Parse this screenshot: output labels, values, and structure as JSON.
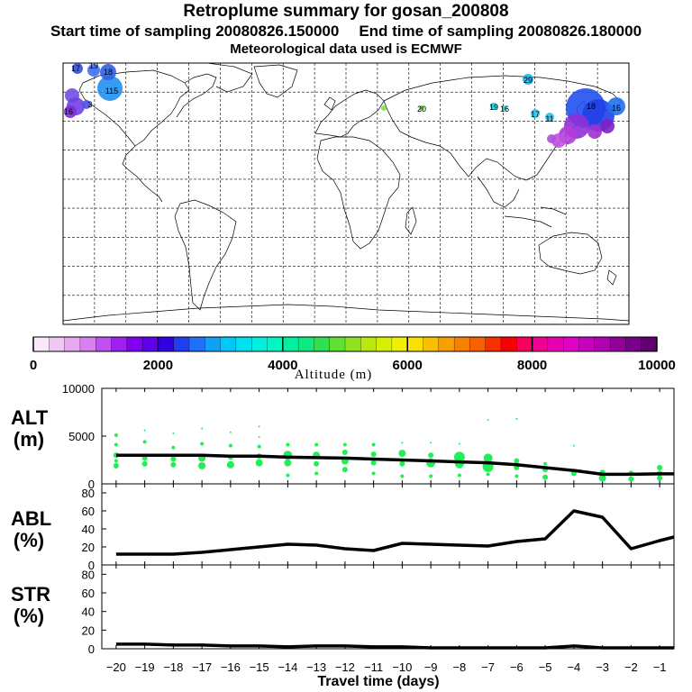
{
  "header": {
    "title": "Retroplume summary for gosan_200808",
    "start_label": "Start time of sampling 20080826.150000",
    "end_label": "End time of sampling 20080826.180000",
    "met_label": "Meteorological data used is ECMWF"
  },
  "colorbar": {
    "xlabel": "Altitude (m)",
    "ticks": [
      "0",
      "2000",
      "4000",
      "6000",
      "8000",
      "10000"
    ],
    "range": [
      0,
      10000
    ],
    "colors": [
      "#f8e8f8",
      "#f0c8f0",
      "#e8a8f0",
      "#d880f0",
      "#c050f0",
      "#a020f0",
      "#8000f0",
      "#6000e8",
      "#3000e0",
      "#2040f0",
      "#2070f8",
      "#10a0f8",
      "#00c8f8",
      "#00e0f0",
      "#00f0e0",
      "#00f8c0",
      "#00f0a0",
      "#10e880",
      "#30e050",
      "#60e030",
      "#90e020",
      "#b8e810",
      "#d8f000",
      "#f0f000",
      "#f8e000",
      "#f8c000",
      "#f8a000",
      "#f88000",
      "#f86000",
      "#f83000",
      "#f80000",
      "#f80060",
      "#f00090",
      "#e800b0",
      "#e000c8",
      "#c800c0",
      "#b000b0",
      "#900098",
      "#780088",
      "#600070"
    ]
  },
  "map_labels": {
    "plume_numbers": [
      "17",
      "19",
      "18",
      "115",
      "3",
      "16",
      "29",
      "17",
      "11",
      "19",
      "16",
      "20",
      "18",
      "16"
    ]
  },
  "x_axis": {
    "title": "Travel time (days)",
    "ticks": [
      "-20",
      "-19",
      "-18",
      "-17",
      "-16",
      "-15",
      "-14",
      "-13",
      "-12",
      "-11",
      "-10",
      "-9",
      "-8",
      "-7",
      "-6",
      "-5",
      "-4",
      "-3",
      "-2",
      "-1"
    ],
    "range": [
      -20.5,
      -0.5
    ]
  },
  "panels": {
    "alt": {
      "name_line1": "ALT",
      "name_line2": "(m)",
      "yticks": [
        "0",
        "5000",
        "10000"
      ]
    },
    "abl": {
      "name_line1": "ABL",
      "name_line2": "(%)",
      "yticks": [
        "0",
        "20",
        "40",
        "60",
        "80"
      ]
    },
    "str": {
      "name_line1": "STR",
      "name_line2": "(%)",
      "yticks": [
        "0",
        "20",
        "40",
        "60",
        "80"
      ]
    }
  },
  "chart_data": [
    {
      "type": "line",
      "title": "ALT (m)",
      "xlabel": "Travel time (days)",
      "ylabel": "Altitude (m)",
      "ylim": [
        0,
        10000
      ],
      "x": [
        -20,
        -19,
        -18,
        -17,
        -16,
        -15,
        -14,
        -13,
        -12,
        -11,
        -10,
        -9,
        -8,
        -7,
        -6,
        -5,
        -4,
        -3,
        -2,
        -1,
        -0.5
      ],
      "values": [
        3000,
        3000,
        3000,
        3000,
        2900,
        2900,
        2800,
        2750,
        2700,
        2600,
        2500,
        2400,
        2300,
        2200,
        2000,
        1700,
        1400,
        1000,
        1000,
        1050,
        1050
      ],
      "scatter_points": [
        {
          "x": -20,
          "y": 1900,
          "size": 3
        },
        {
          "x": -20,
          "y": 2400,
          "size": 2
        },
        {
          "x": -20,
          "y": 3000,
          "size": 3
        },
        {
          "x": -20,
          "y": 4100,
          "size": 2
        },
        {
          "x": -20,
          "y": 5100,
          "size": 2
        },
        {
          "x": -19,
          "y": 2100,
          "size": 3
        },
        {
          "x": -19,
          "y": 2700,
          "size": 3
        },
        {
          "x": -19,
          "y": 4400,
          "size": 2
        },
        {
          "x": -19,
          "y": 5600,
          "size": 1
        },
        {
          "x": -18,
          "y": 2000,
          "size": 3
        },
        {
          "x": -18,
          "y": 2600,
          "size": 3
        },
        {
          "x": -18,
          "y": 3800,
          "size": 2
        },
        {
          "x": -18,
          "y": 5300,
          "size": 1
        },
        {
          "x": -17,
          "y": 1900,
          "size": 4
        },
        {
          "x": -17,
          "y": 2700,
          "size": 4
        },
        {
          "x": -17,
          "y": 4200,
          "size": 2
        },
        {
          "x": -17,
          "y": 5800,
          "size": 1
        },
        {
          "x": -16,
          "y": 2000,
          "size": 4
        },
        {
          "x": -16,
          "y": 2800,
          "size": 3
        },
        {
          "x": -16,
          "y": 4000,
          "size": 2
        },
        {
          "x": -16,
          "y": 5400,
          "size": 1
        },
        {
          "x": -15,
          "y": 2200,
          "size": 4
        },
        {
          "x": -15,
          "y": 2900,
          "size": 3
        },
        {
          "x": -15,
          "y": 3900,
          "size": 2
        },
        {
          "x": -15,
          "y": 4900,
          "size": 1
        },
        {
          "x": -15,
          "y": 6000,
          "size": 1
        },
        {
          "x": -14,
          "y": 900,
          "size": 2
        },
        {
          "x": -14,
          "y": 2200,
          "size": 4
        },
        {
          "x": -14,
          "y": 3000,
          "size": 5
        },
        {
          "x": -14,
          "y": 4100,
          "size": 2
        },
        {
          "x": -13,
          "y": 1100,
          "size": 2
        },
        {
          "x": -13,
          "y": 2100,
          "size": 3
        },
        {
          "x": -13,
          "y": 3000,
          "size": 4
        },
        {
          "x": -13,
          "y": 4100,
          "size": 2
        },
        {
          "x": -12,
          "y": 1500,
          "size": 3
        },
        {
          "x": -12,
          "y": 2400,
          "size": 4
        },
        {
          "x": -12,
          "y": 3300,
          "size": 3
        },
        {
          "x": -12,
          "y": 4100,
          "size": 2
        },
        {
          "x": -11,
          "y": 1100,
          "size": 2
        },
        {
          "x": -11,
          "y": 2200,
          "size": 3
        },
        {
          "x": -11,
          "y": 3100,
          "size": 3
        },
        {
          "x": -11,
          "y": 4100,
          "size": 2
        },
        {
          "x": -10,
          "y": 800,
          "size": 2
        },
        {
          "x": -10,
          "y": 2100,
          "size": 3
        },
        {
          "x": -10,
          "y": 3200,
          "size": 4
        },
        {
          "x": -10,
          "y": 4300,
          "size": 1
        },
        {
          "x": -9,
          "y": 800,
          "size": 2
        },
        {
          "x": -9,
          "y": 2200,
          "size": 5
        },
        {
          "x": -9,
          "y": 3000,
          "size": 3
        },
        {
          "x": -9,
          "y": 4300,
          "size": 1
        },
        {
          "x": -8,
          "y": 900,
          "size": 2
        },
        {
          "x": -8,
          "y": 2100,
          "size": 5
        },
        {
          "x": -8,
          "y": 2800,
          "size": 6
        },
        {
          "x": -8,
          "y": 4200,
          "size": 1
        },
        {
          "x": -7,
          "y": 1000,
          "size": 2
        },
        {
          "x": -7,
          "y": 1800,
          "size": 6
        },
        {
          "x": -7,
          "y": 2700,
          "size": 5
        },
        {
          "x": -7,
          "y": 6700,
          "size": 1
        },
        {
          "x": -6,
          "y": 800,
          "size": 2
        },
        {
          "x": -6,
          "y": 1700,
          "size": 3
        },
        {
          "x": -6,
          "y": 2400,
          "size": 3
        },
        {
          "x": -6,
          "y": 6800,
          "size": 1
        },
        {
          "x": -5,
          "y": 700,
          "size": 3
        },
        {
          "x": -5,
          "y": 1500,
          "size": 3
        },
        {
          "x": -5,
          "y": 2100,
          "size": 2
        },
        {
          "x": -4,
          "y": 1100,
          "size": 3
        },
        {
          "x": -4,
          "y": 4000,
          "size": 1
        },
        {
          "x": -3,
          "y": 600,
          "size": 4
        },
        {
          "x": -3,
          "y": 1200,
          "size": 3
        },
        {
          "x": -2,
          "y": 500,
          "size": 3
        },
        {
          "x": -2,
          "y": 1100,
          "size": 3
        },
        {
          "x": -1,
          "y": 600,
          "size": 3
        },
        {
          "x": -1,
          "y": 1100,
          "size": 3
        },
        {
          "x": -1,
          "y": 1700,
          "size": 3
        }
      ]
    },
    {
      "type": "line",
      "title": "ABL (%)",
      "xlabel": "Travel time (days)",
      "ylabel": "ABL (%)",
      "ylim": [
        0,
        90
      ],
      "x": [
        -20,
        -19,
        -18,
        -17,
        -16,
        -15,
        -14,
        -13,
        -12,
        -11,
        -10,
        -9,
        -8,
        -7,
        -6,
        -5,
        -4,
        -3,
        -2,
        -1,
        -0.5
      ],
      "values": [
        12,
        12,
        12,
        14,
        17,
        20,
        23,
        22,
        18,
        16,
        24,
        23,
        22,
        21,
        26,
        29,
        60,
        53,
        18,
        27,
        31
      ]
    },
    {
      "type": "line",
      "title": "STR (%)",
      "xlabel": "Travel time (days)",
      "ylabel": "STR (%)",
      "ylim": [
        0,
        90
      ],
      "x": [
        -20,
        -19,
        -18,
        -17,
        -16,
        -15,
        -14,
        -13,
        -12,
        -11,
        -10,
        -9,
        -8,
        -7,
        -6,
        -5,
        -4,
        -3,
        -2,
        -1,
        -0.5
      ],
      "values": [
        5,
        5,
        4,
        4,
        3,
        3,
        2,
        3,
        3,
        2,
        2,
        1,
        1,
        1,
        1,
        1,
        3,
        1,
        1,
        1,
        1
      ]
    }
  ]
}
